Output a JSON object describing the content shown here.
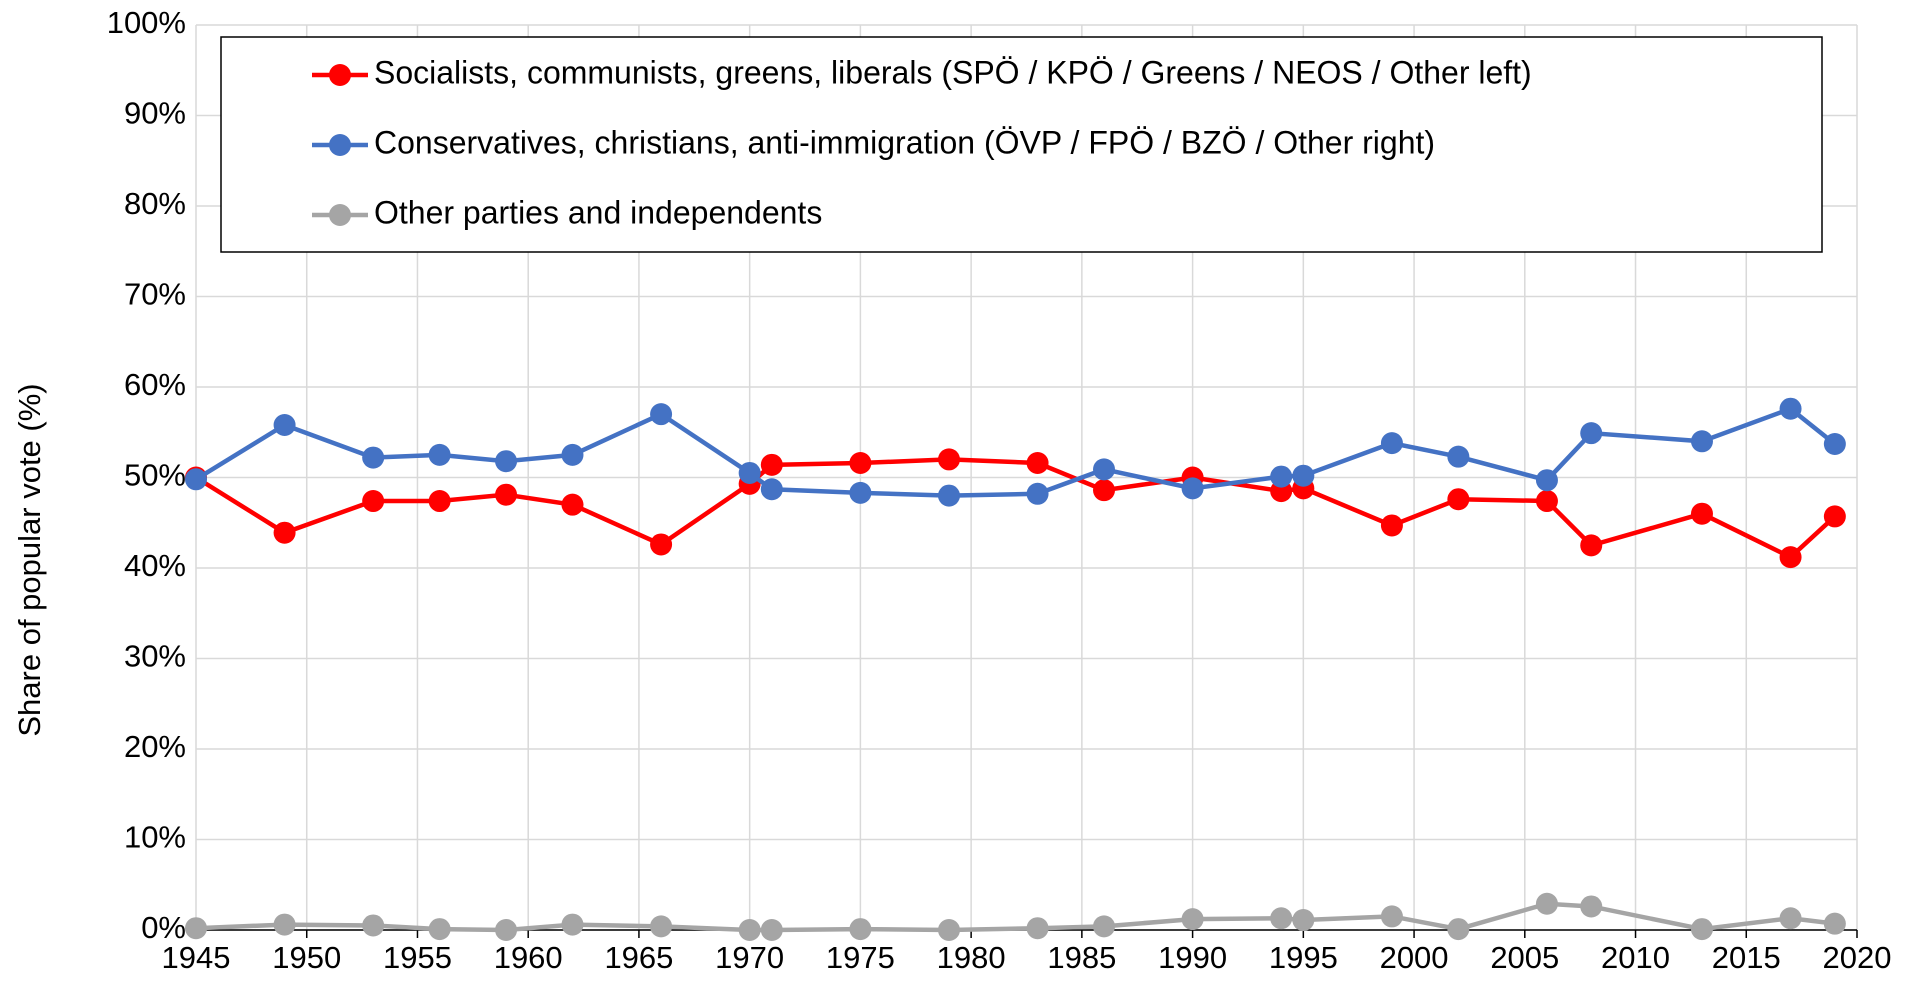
{
  "chart_data": {
    "type": "line",
    "y_label": "Share of popular vote (%)",
    "x": [
      1945,
      1949,
      1953,
      1956,
      1959,
      1962,
      1966,
      1970,
      1971,
      1975,
      1979,
      1983,
      1986,
      1990,
      1994,
      1995,
      1999,
      2002,
      2006,
      2008,
      2013,
      2017,
      2019
    ],
    "series": [
      {
        "name": "Socialists, communists, greens, liberals (SPÖ / KPÖ / Greens / NEOS / Other left)",
        "color": "#ff0000",
        "values": [
          50.0,
          43.9,
          47.4,
          47.4,
          48.1,
          47.0,
          42.6,
          49.3,
          51.4,
          51.6,
          52.0,
          51.6,
          48.6,
          50.0,
          48.5,
          48.8,
          44.7,
          47.6,
          47.4,
          42.5,
          46.0,
          41.2,
          45.7
        ]
      },
      {
        "name": "Conservatives, christians, anti-immigration (ÖVP / FPÖ / BZÖ / Other right)",
        "color": "#4472c4",
        "values": [
          49.8,
          55.8,
          52.2,
          52.5,
          51.8,
          52.5,
          57.0,
          50.5,
          48.7,
          48.3,
          48.0,
          48.2,
          50.9,
          48.8,
          50.1,
          50.2,
          53.8,
          52.3,
          49.7,
          54.9,
          54.0,
          57.6,
          53.7
        ]
      },
      {
        "name": "Other parties and independents",
        "color": "#a5a5a5",
        "values": [
          0.2,
          0.6,
          0.5,
          0.1,
          0.0,
          0.6,
          0.4,
          0.0,
          0.0,
          0.1,
          0.0,
          0.2,
          0.4,
          1.2,
          1.3,
          1.1,
          1.5,
          0.1,
          2.9,
          2.6,
          0.1,
          1.3,
          0.7
        ]
      }
    ],
    "xlim": [
      1945,
      2020
    ],
    "xticks": [
      1945,
      1950,
      1955,
      1960,
      1965,
      1970,
      1975,
      1980,
      1985,
      1990,
      1995,
      2000,
      2005,
      2010,
      2015,
      2020
    ],
    "ylim": [
      0,
      100
    ],
    "yticks": [
      {
        "value": 0,
        "label": "0%"
      },
      {
        "value": 10,
        "label": "10%"
      },
      {
        "value": 20,
        "label": "20%"
      },
      {
        "value": 30,
        "label": "30%"
      },
      {
        "value": 40,
        "label": "40%"
      },
      {
        "value": 50,
        "label": "50%"
      },
      {
        "value": 60,
        "label": "60%"
      },
      {
        "value": 70,
        "label": "70%"
      },
      {
        "value": 80,
        "label": "80%"
      },
      {
        "value": 90,
        "label": "90%"
      },
      {
        "value": 100,
        "label": "100%"
      }
    ],
    "grid": true
  }
}
